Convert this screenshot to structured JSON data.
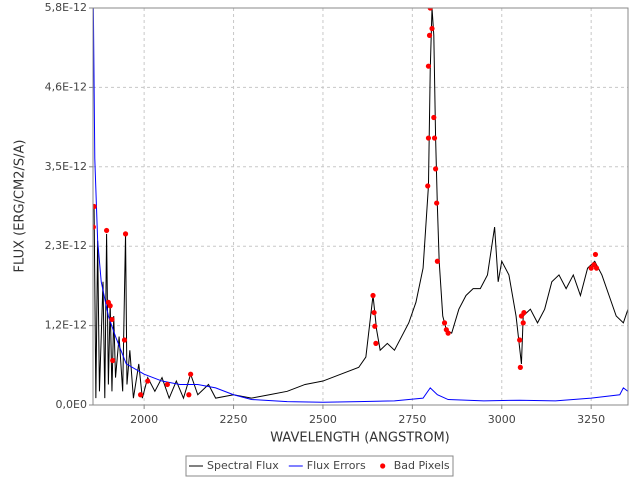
{
  "chart_data": {
    "type": "line",
    "xlabel": "WAVELENGTH (ANGSTROM)",
    "ylabel": "FLUX (ERG/CM2/S/A)",
    "xlim": [
      1857,
      3353
    ],
    "xticks": [
      2000,
      2250,
      2500,
      2750,
      3000,
      3250
    ],
    "ylim": [
      0,
      5.8e-12
    ],
    "yticks": [
      {
        "value": 0,
        "label": "0,0E0"
      },
      {
        "value": 1.16e-12,
        "label": "1,2E-12"
      },
      {
        "value": 2.32e-12,
        "label": "2,3E-12"
      },
      {
        "value": 3.48e-12,
        "label": "3,5E-12"
      },
      {
        "value": 4.64e-12,
        "label": "4,6E-12"
      },
      {
        "value": 5.8e-12,
        "label": "5,8E-12"
      }
    ],
    "grid": true,
    "legend": "bottom",
    "series": [
      {
        "name": "Spectral Flux",
        "color": "#000000",
        "style": "line",
        "x": [
          1860,
          1865,
          1870,
          1875,
          1885,
          1890,
          1895,
          1900,
          1905,
          1910,
          1915,
          1920,
          1930,
          1940,
          1948,
          1952,
          1960,
          1970,
          1985,
          1995,
          2010,
          2030,
          2050,
          2070,
          2090,
          2110,
          2130,
          2150,
          2180,
          2200,
          2250,
          2300,
          2350,
          2400,
          2450,
          2500,
          2550,
          2600,
          2620,
          2640,
          2650,
          2660,
          2680,
          2700,
          2720,
          2740,
          2760,
          2780,
          2795,
          2800,
          2805,
          2810,
          2815,
          2820,
          2825,
          2835,
          2845,
          2860,
          2880,
          2900,
          2920,
          2940,
          2960,
          2980,
          2990,
          3000,
          3020,
          3040,
          3055,
          3060,
          3080,
          3100,
          3120,
          3140,
          3160,
          3180,
          3200,
          3220,
          3240,
          3260,
          3280,
          3300,
          3320,
          3340,
          3353
        ],
        "values": [
          2.9e-12,
          1e-13,
          2.4e-12,
          2e-13,
          1.8e-12,
          1e-13,
          2.5e-12,
          3e-13,
          1.5e-12,
          2e-13,
          1.3e-12,
          4e-13,
          1e-12,
          2e-13,
          2.5e-12,
          3e-13,
          8e-13,
          1e-13,
          6e-13,
          1e-13,
          4e-13,
          2e-13,
          4e-13,
          1e-13,
          3.5e-13,
          1e-13,
          4.5e-13,
          1.5e-13,
          3e-13,
          1e-13,
          1.5e-13,
          1e-13,
          1.5e-13,
          2e-13,
          3e-13,
          3.5e-13,
          4.5e-13,
          5.5e-13,
          7e-13,
          1.6e-12,
          1.1e-12,
          8e-13,
          9e-13,
          8e-13,
          1e-12,
          1.2e-12,
          1.5e-12,
          2e-12,
          3.2e-12,
          4.9e-12,
          5.8e-12,
          5.4e-12,
          3.9e-12,
          2.9e-12,
          2.1e-12,
          1.3e-12,
          1.1e-12,
          1.05e-12,
          1.4e-12,
          1.6e-12,
          1.7e-12,
          1.7e-12,
          1.9e-12,
          2.6e-12,
          1.8e-12,
          2.1e-12,
          1.9e-12,
          1.3e-12,
          6e-13,
          1.3e-12,
          1.4e-12,
          1.2e-12,
          1.4e-12,
          1.8e-12,
          1.9e-12,
          1.7e-12,
          1.9e-12,
          1.6e-12,
          2e-12,
          2.1e-12,
          1.9e-12,
          1.6e-12,
          1.3e-12,
          1.2e-12,
          1.4e-12
        ]
      },
      {
        "name": "Flux Errors",
        "color": "#0000ff",
        "style": "line",
        "x": [
          1858,
          1862,
          1870,
          1880,
          1900,
          1920,
          1950,
          2000,
          2050,
          2100,
          2150,
          2200,
          2250,
          2300,
          2400,
          2500,
          2600,
          2700,
          2780,
          2800,
          2820,
          2850,
          2950,
          3050,
          3150,
          3250,
          3330,
          3340,
          3353
        ],
        "values": [
          5.8e-12,
          3.6e-12,
          2.4e-12,
          1.8e-12,
          1.3e-12,
          1e-12,
          6e-13,
          4.5e-13,
          3.5e-13,
          3e-13,
          3e-13,
          2.5e-13,
          1.5e-13,
          8e-14,
          5e-14,
          4e-14,
          5e-14,
          6e-14,
          1e-13,
          2.5e-13,
          1.5e-13,
          8e-14,
          6e-14,
          7e-14,
          6e-14,
          1e-13,
          1.5e-13,
          2.5e-13,
          2e-13
        ]
      },
      {
        "name": "Bad Pixels",
        "color": "#ff0000",
        "style": "points",
        "x": [
          1860,
          1858,
          1895,
          1905,
          1910,
          1900,
          1912,
          1948,
          1945,
          1990,
          2010,
          2065,
          2130,
          2125,
          2800,
          2798,
          2805,
          2795,
          2795,
          2810,
          2812,
          2815,
          2793,
          2818,
          2820,
          2640,
          2643,
          2645,
          2648,
          2840,
          2845,
          2850,
          3050,
          3052,
          3055,
          3060,
          3062,
          3250,
          3258,
          3262,
          3265
        ],
        "values": [
          2.9e-12,
          2.6e-12,
          2.55e-12,
          1.45e-12,
          1.25e-12,
          1.5e-12,
          6.5e-13,
          2.5e-12,
          9.5e-13,
          1.5e-13,
          3.5e-13,
          3e-13,
          4.5e-13,
          1.5e-13,
          5.8e-12,
          5.4e-12,
          5.5e-12,
          4.95e-12,
          3.9e-12,
          4.2e-12,
          3.9e-12,
          3.45e-12,
          3.2e-12,
          2.95e-12,
          2.1e-12,
          1.6e-12,
          1.35e-12,
          1.15e-12,
          9e-13,
          1.2e-12,
          1.1e-12,
          1.05e-12,
          9.5e-13,
          5.5e-13,
          1.3e-12,
          1.2e-12,
          1.35e-12,
          2e-12,
          2.05e-12,
          2.2e-12,
          2e-12
        ]
      }
    ]
  }
}
